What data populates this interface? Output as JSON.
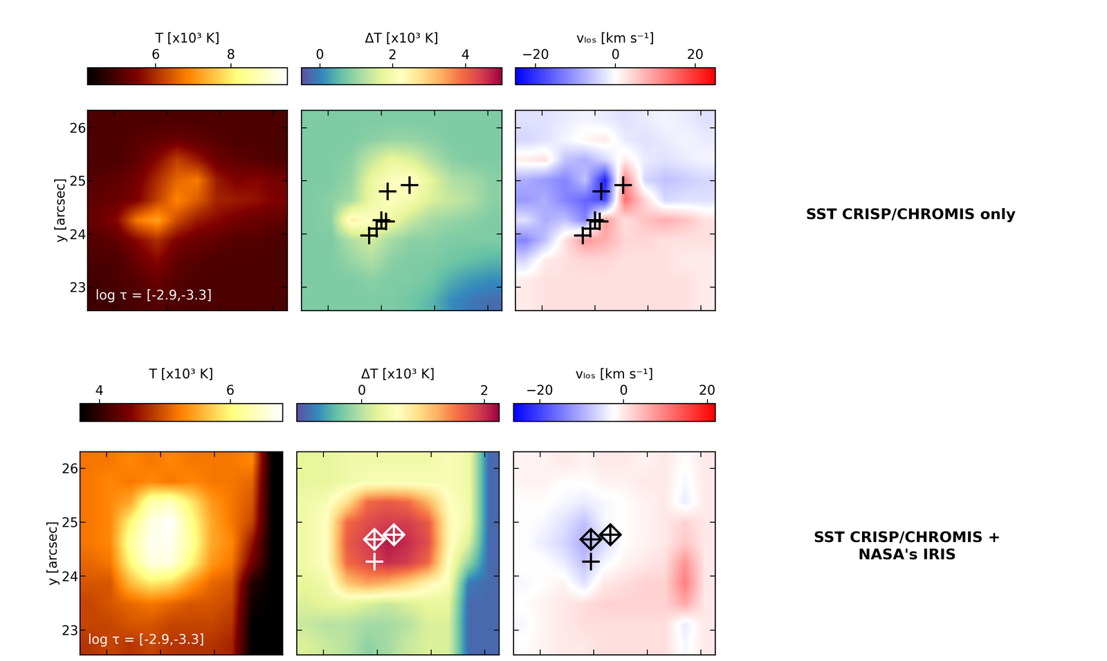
{
  "chart_data": [
    {
      "type": "heatmap",
      "colorbar_label": "T [x10³ K]",
      "color": "afmhot",
      "colorbar": {
        "lim": [
          4.2,
          9.5
        ],
        "ticks": [
          6,
          8
        ]
      },
      "xlim": [
        0,
        3.77
      ],
      "ylim": [
        22.56,
        26.33
      ],
      "xticks": [
        0.5,
        1.5,
        2.5,
        3.5
      ],
      "yticks": [
        23,
        24,
        25,
        26
      ],
      "ylabel": "y [arcsec]",
      "tick_labels": "y",
      "annotation": "log τ = [-2.9,-3.3]",
      "cells": [
        [
          5.0,
          5.0,
          5.0,
          5.0,
          5.0,
          5.0,
          5.0,
          5.0,
          5.0,
          5.0
        ],
        [
          5.0,
          5.0,
          5.1,
          5.2,
          5.3,
          5.2,
          5.1,
          5.0,
          5.0,
          5.0
        ],
        [
          5.0,
          5.0,
          5.2,
          5.6,
          6.2,
          5.8,
          5.3,
          5.2,
          5.1,
          5.0
        ],
        [
          5.1,
          5.2,
          5.4,
          6.0,
          6.6,
          6.8,
          5.8,
          5.5,
          5.6,
          5.4
        ],
        [
          5.2,
          5.3,
          5.5,
          6.2,
          6.9,
          6.5,
          5.9,
          5.8,
          5.7,
          5.5
        ],
        [
          5.3,
          5.6,
          6.8,
          7.2,
          6.3,
          5.8,
          5.6,
          5.4,
          5.3,
          5.2
        ],
        [
          5.1,
          5.2,
          5.6,
          6.0,
          5.5,
          5.3,
          5.2,
          5.1,
          5.1,
          5.0
        ],
        [
          5.0,
          5.0,
          5.3,
          5.6,
          5.2,
          5.1,
          5.0,
          5.0,
          5.0,
          5.0
        ],
        [
          4.9,
          5.0,
          5.1,
          5.3,
          5.1,
          5.0,
          5.0,
          5.0,
          5.0,
          5.0
        ],
        [
          4.9,
          4.9,
          5.0,
          5.1,
          5.0,
          5.0,
          5.0,
          5.0,
          5.0,
          5.0
        ]
      ]
    },
    {
      "type": "heatmap",
      "colorbar_label": "ΔT [x10³ K]",
      "color": "Spectral_r",
      "colorbar": {
        "lim": [
          -0.5,
          5.0
        ],
        "ticks": [
          0,
          2,
          4
        ]
      },
      "xlim": [
        0,
        3.77
      ],
      "ylim": [
        22.56,
        26.33
      ],
      "xticks": [
        0.5,
        1.5,
        2.5,
        3.5
      ],
      "yticks": [
        23,
        24,
        25,
        26
      ],
      "tick_labels": false,
      "crosses": {
        "x": [
          1.62,
          2.03,
          1.5,
          1.59,
          1.41,
          1.27
        ],
        "y": [
          24.8,
          24.92,
          24.26,
          24.24,
          24.1,
          23.97
        ],
        "color": "black"
      },
      "cells": [
        [
          0.8,
          0.8,
          0.8,
          0.8,
          0.8,
          0.8,
          0.8,
          0.8,
          0.8,
          0.8
        ],
        [
          0.8,
          0.8,
          0.8,
          0.9,
          1.0,
          1.0,
          0.9,
          0.8,
          0.8,
          0.8
        ],
        [
          0.8,
          0.8,
          0.9,
          1.4,
          1.8,
          1.6,
          1.2,
          0.9,
          0.8,
          0.8
        ],
        [
          0.8,
          0.8,
          1.0,
          1.8,
          2.2,
          2.3,
          1.7,
          1.2,
          1.1,
          0.9
        ],
        [
          0.8,
          0.9,
          1.1,
          1.9,
          2.2,
          2.0,
          1.6,
          1.4,
          1.2,
          0.9
        ],
        [
          0.8,
          0.9,
          2.5,
          2.2,
          1.9,
          1.4,
          1.1,
          1.0,
          0.9,
          0.8
        ],
        [
          0.8,
          0.8,
          1.2,
          1.5,
          1.1,
          0.9,
          0.9,
          0.8,
          0.8,
          0.8
        ],
        [
          0.8,
          0.8,
          1.0,
          1.2,
          0.9,
          0.8,
          0.8,
          0.7,
          0.6,
          0.5
        ],
        [
          0.8,
          0.8,
          0.8,
          0.9,
          0.8,
          0.8,
          0.7,
          0.4,
          0.2,
          0.1
        ],
        [
          0.8,
          0.8,
          0.8,
          0.8,
          0.8,
          0.7,
          0.5,
          0.1,
          -0.1,
          -0.2
        ]
      ]
    },
    {
      "type": "heatmap",
      "colorbar_label": "vₗₒₛ [km s⁻¹]",
      "color": "bwr",
      "colorbar": {
        "lim": [
          -25,
          25
        ],
        "ticks": [
          {
            "value": -20,
            "label": "−20"
          },
          0,
          20
        ]
      },
      "xlim": [
        0,
        3.77
      ],
      "ylim": [
        22.56,
        26.33
      ],
      "xticks": [
        0.5,
        1.5,
        2.5,
        3.5
      ],
      "yticks": [
        23,
        24,
        25,
        26
      ],
      "tick_labels": false,
      "crosses": {
        "x": [
          1.62,
          2.03,
          1.5,
          1.59,
          1.41,
          1.27
        ],
        "y": [
          24.8,
          24.92,
          24.26,
          24.24,
          24.1,
          23.97
        ],
        "color": "black"
      },
      "cells": [
        [
          -3,
          -3,
          -2,
          -1,
          -2,
          -3,
          -2,
          -1,
          -2,
          -3
        ],
        [
          -4,
          -3,
          -1,
          1,
          2,
          -2,
          -3,
          -2,
          -1,
          -2
        ],
        [
          2,
          3,
          -6,
          -8,
          -4,
          2,
          -2,
          -3,
          -2,
          -1
        ],
        [
          -8,
          -10,
          -12,
          -6,
          -22,
          12,
          -4,
          -6,
          -5,
          -4
        ],
        [
          -10,
          -8,
          -12,
          -15,
          -18,
          14,
          4,
          -4,
          -3,
          -3
        ],
        [
          -3,
          -8,
          -6,
          -12,
          10,
          3,
          6,
          8,
          6,
          3
        ],
        [
          -12,
          -6,
          3,
          10,
          8,
          4,
          4,
          3,
          3,
          3
        ],
        [
          -4,
          2,
          3,
          4,
          4,
          3,
          3,
          3,
          2,
          2
        ],
        [
          2,
          3,
          3,
          3,
          3,
          3,
          3,
          3,
          3,
          2
        ],
        [
          2,
          3,
          3,
          3,
          3,
          3,
          3,
          3,
          3,
          2
        ]
      ]
    },
    {
      "type": "heatmap",
      "colorbar_label": "T [x10³ K]",
      "color": "afmhot",
      "colorbar": {
        "lim": [
          3.7,
          6.8
        ],
        "ticks": [
          4,
          6
        ]
      },
      "xlim": [
        0,
        3.77
      ],
      "ylim": [
        22.54,
        26.31
      ],
      "xticks": [
        0.5,
        1.5,
        2.5,
        3.5
      ],
      "yticks": [
        23,
        24,
        25,
        26
      ],
      "ylabel": "y [arcsec]",
      "tick_labels": "y",
      "annotation": "log τ = [-2.9,-3.3]",
      "cells": [
        [
          5.2,
          5.2,
          5.3,
          5.2,
          5.3,
          5.2,
          5.2,
          5.2,
          5.3,
          3.7
        ],
        [
          5.2,
          5.3,
          5.2,
          5.3,
          5.2,
          5.3,
          5.2,
          5.2,
          5.1,
          3.7
        ],
        [
          5.2,
          5.3,
          5.5,
          6.3,
          6.4,
          5.9,
          5.4,
          5.2,
          5.0,
          3.7
        ],
        [
          5.2,
          5.3,
          6.0,
          6.6,
          6.8,
          6.1,
          5.5,
          5.2,
          4.9,
          3.7
        ],
        [
          5.2,
          5.3,
          6.2,
          6.7,
          6.7,
          6.2,
          5.5,
          5.3,
          4.6,
          3.7
        ],
        [
          5.1,
          5.2,
          6.0,
          6.6,
          6.6,
          6.0,
          5.4,
          5.2,
          4.4,
          3.7
        ],
        [
          5.0,
          5.0,
          5.6,
          5.9,
          5.8,
          5.4,
          5.1,
          5.0,
          3.9,
          3.7
        ],
        [
          4.9,
          5.0,
          5.1,
          5.2,
          5.1,
          5.0,
          5.0,
          4.9,
          3.8,
          3.7
        ],
        [
          4.9,
          4.9,
          5.0,
          5.0,
          4.9,
          4.9,
          4.9,
          4.8,
          3.7,
          3.7
        ],
        [
          4.8,
          4.9,
          4.8,
          4.9,
          4.8,
          4.8,
          4.8,
          4.7,
          3.7,
          3.7
        ]
      ]
    },
    {
      "type": "heatmap",
      "colorbar_label": "ΔT [x10³ K]",
      "color": "Spectral_r",
      "colorbar": {
        "lim": [
          -1.06,
          2.24
        ],
        "ticks": [
          0,
          2
        ]
      },
      "xlim": [
        0,
        3.77
      ],
      "ylim": [
        22.54,
        26.31
      ],
      "xticks": [
        0.5,
        1.5,
        2.5,
        3.5
      ],
      "yticks": [
        23,
        24,
        25,
        26
      ],
      "tick_labels": false,
      "crosses": {
        "x": [
          1.45,
          1.81,
          1.45
        ],
        "y": [
          24.68,
          24.77,
          24.27
        ],
        "color": "white"
      },
      "diamonds": {
        "x": [
          1.45,
          1.81
        ],
        "y": [
          24.68,
          24.77
        ],
        "color": "white"
      },
      "cells": [
        [
          0.3,
          0.3,
          0.4,
          0.4,
          0.4,
          0.4,
          0.4,
          0.5,
          0.4,
          -0.9
        ],
        [
          0.3,
          0.3,
          0.4,
          0.5,
          0.5,
          0.5,
          0.5,
          0.5,
          0.4,
          -0.9
        ],
        [
          0.4,
          0.5,
          0.9,
          1.6,
          1.7,
          1.6,
          1.2,
          0.6,
          0.4,
          -0.9
        ],
        [
          0.4,
          0.6,
          1.6,
          1.8,
          1.9,
          1.9,
          1.7,
          0.7,
          0.4,
          -0.9
        ],
        [
          0.4,
          0.6,
          1.7,
          1.9,
          2.1,
          2.0,
          1.8,
          0.7,
          0.2,
          -0.9
        ],
        [
          0.4,
          0.6,
          1.6,
          1.8,
          2.0,
          1.9,
          1.6,
          0.6,
          -0.2,
          -0.9
        ],
        [
          0.3,
          0.4,
          1.1,
          1.3,
          1.2,
          1.0,
          0.7,
          0.5,
          -0.8,
          -0.9
        ],
        [
          0.2,
          0.3,
          0.3,
          0.2,
          0.1,
          0.2,
          0.3,
          0.3,
          -0.9,
          -0.9
        ],
        [
          0.1,
          0.0,
          0.0,
          -0.1,
          -0.1,
          0.0,
          0.2,
          0.2,
          -0.9,
          -0.9
        ],
        [
          0.2,
          0.1,
          0.0,
          -0.2,
          -0.1,
          0.1,
          0.2,
          0.2,
          -0.9,
          -0.9
        ]
      ]
    },
    {
      "type": "heatmap",
      "colorbar_label": "vₗₒₛ [km s⁻¹]",
      "color": "bwr",
      "colorbar": {
        "lim": [
          -26.3,
          21.9
        ],
        "ticks": [
          {
            "value": -20,
            "label": "−20"
          },
          0,
          20
        ]
      },
      "xlim": [
        0,
        3.77
      ],
      "ylim": [
        22.54,
        26.31
      ],
      "xticks": [
        0.5,
        1.5,
        2.5,
        3.5
      ],
      "yticks": [
        23,
        24,
        25,
        26
      ],
      "tick_labels": false,
      "crosses": {
        "x": [
          1.45,
          1.81,
          1.45
        ],
        "y": [
          24.68,
          24.77,
          24.27
        ],
        "color": "black"
      },
      "diamonds": {
        "x": [
          1.45,
          1.81
        ],
        "y": [
          24.68,
          24.77
        ],
        "color": "black"
      },
      "cells": [
        [
          -1,
          -1,
          0,
          -1,
          0,
          0,
          -1,
          0,
          -2,
          0
        ],
        [
          -1,
          -1,
          -2,
          -2,
          -1,
          -1,
          0,
          0,
          -3,
          0
        ],
        [
          -2,
          -2,
          -3,
          -4,
          -3,
          -2,
          -1,
          0,
          -4,
          0
        ],
        [
          -2,
          -3,
          -5,
          -8,
          -3,
          -2,
          -1,
          0,
          2,
          0
        ],
        [
          -2,
          -4,
          -6,
          -10,
          -6,
          -2,
          -1,
          0,
          3,
          0
        ],
        [
          -2,
          -2,
          -4,
          -8,
          -3,
          -1,
          0,
          1,
          8,
          0
        ],
        [
          -3,
          -2,
          -1,
          -5,
          0,
          1,
          2,
          2,
          10,
          0
        ],
        [
          -2,
          -1,
          0,
          1,
          2,
          2,
          2,
          2,
          6,
          0
        ],
        [
          -3,
          -1,
          0,
          1,
          1,
          1,
          1,
          1,
          -4,
          0
        ],
        [
          -2,
          -1,
          0,
          0,
          1,
          1,
          1,
          1,
          -3,
          0
        ]
      ]
    }
  ],
  "row_labels": [
    "SST CRISP/CHROMIS only",
    "SST CRISP/CHROMIS +\nNASA's IRIS"
  ]
}
